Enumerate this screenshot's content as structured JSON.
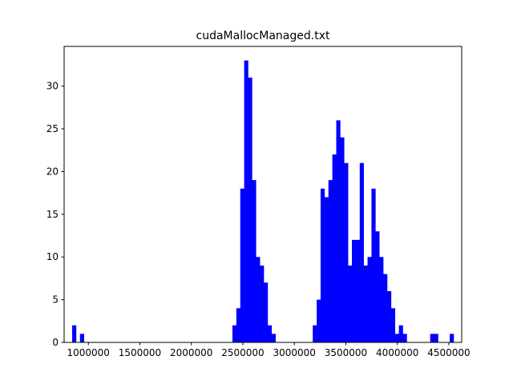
{
  "chart_data": {
    "type": "bar",
    "subtype": "histogram",
    "title": "cudaMallocManaged.txt",
    "xlabel": "",
    "ylabel": "",
    "bar_color": "#0000ff",
    "bin_width": 38000,
    "xlim": [
      765000,
      4625000
    ],
    "ylim": [
      0,
      34.65
    ],
    "x_ticks": [
      1000000,
      1500000,
      2000000,
      2500000,
      3000000,
      3500000,
      4000000,
      4500000
    ],
    "x_tick_labels": [
      "1000000",
      "1500000",
      "2000000",
      "2500000",
      "3000000",
      "3500000",
      "4000000",
      "4500000"
    ],
    "y_ticks": [
      0,
      5,
      10,
      15,
      20,
      25,
      30
    ],
    "y_tick_labels": [
      "0",
      "5",
      "10",
      "15",
      "20",
      "25",
      "30"
    ],
    "grid": false,
    "bins": [
      {
        "x0": 843000,
        "count": 2
      },
      {
        "x0": 919000,
        "count": 1
      },
      {
        "x0": 2399000,
        "count": 2
      },
      {
        "x0": 2437000,
        "count": 4
      },
      {
        "x0": 2475000,
        "count": 18
      },
      {
        "x0": 2513000,
        "count": 33
      },
      {
        "x0": 2551000,
        "count": 31
      },
      {
        "x0": 2589000,
        "count": 19
      },
      {
        "x0": 2627000,
        "count": 10
      },
      {
        "x0": 2665000,
        "count": 9
      },
      {
        "x0": 2703000,
        "count": 7
      },
      {
        "x0": 2741000,
        "count": 2
      },
      {
        "x0": 2779000,
        "count": 1
      },
      {
        "x0": 3179000,
        "count": 2
      },
      {
        "x0": 3217000,
        "count": 5
      },
      {
        "x0": 3255000,
        "count": 18
      },
      {
        "x0": 3293000,
        "count": 17
      },
      {
        "x0": 3331000,
        "count": 19
      },
      {
        "x0": 3369000,
        "count": 22
      },
      {
        "x0": 3407000,
        "count": 26
      },
      {
        "x0": 3445000,
        "count": 24
      },
      {
        "x0": 3483000,
        "count": 21
      },
      {
        "x0": 3521000,
        "count": 9
      },
      {
        "x0": 3559000,
        "count": 12
      },
      {
        "x0": 3597000,
        "count": 12
      },
      {
        "x0": 3635000,
        "count": 21
      },
      {
        "x0": 3673000,
        "count": 9
      },
      {
        "x0": 3711000,
        "count": 10
      },
      {
        "x0": 3749000,
        "count": 18
      },
      {
        "x0": 3787000,
        "count": 13
      },
      {
        "x0": 3825000,
        "count": 10
      },
      {
        "x0": 3863000,
        "count": 8
      },
      {
        "x0": 3901000,
        "count": 6
      },
      {
        "x0": 3939000,
        "count": 4
      },
      {
        "x0": 3977000,
        "count": 1
      },
      {
        "x0": 4015000,
        "count": 2
      },
      {
        "x0": 4053000,
        "count": 1
      },
      {
        "x0": 4319000,
        "count": 1
      },
      {
        "x0": 4357000,
        "count": 1
      },
      {
        "x0": 4509000,
        "count": 1
      }
    ]
  }
}
